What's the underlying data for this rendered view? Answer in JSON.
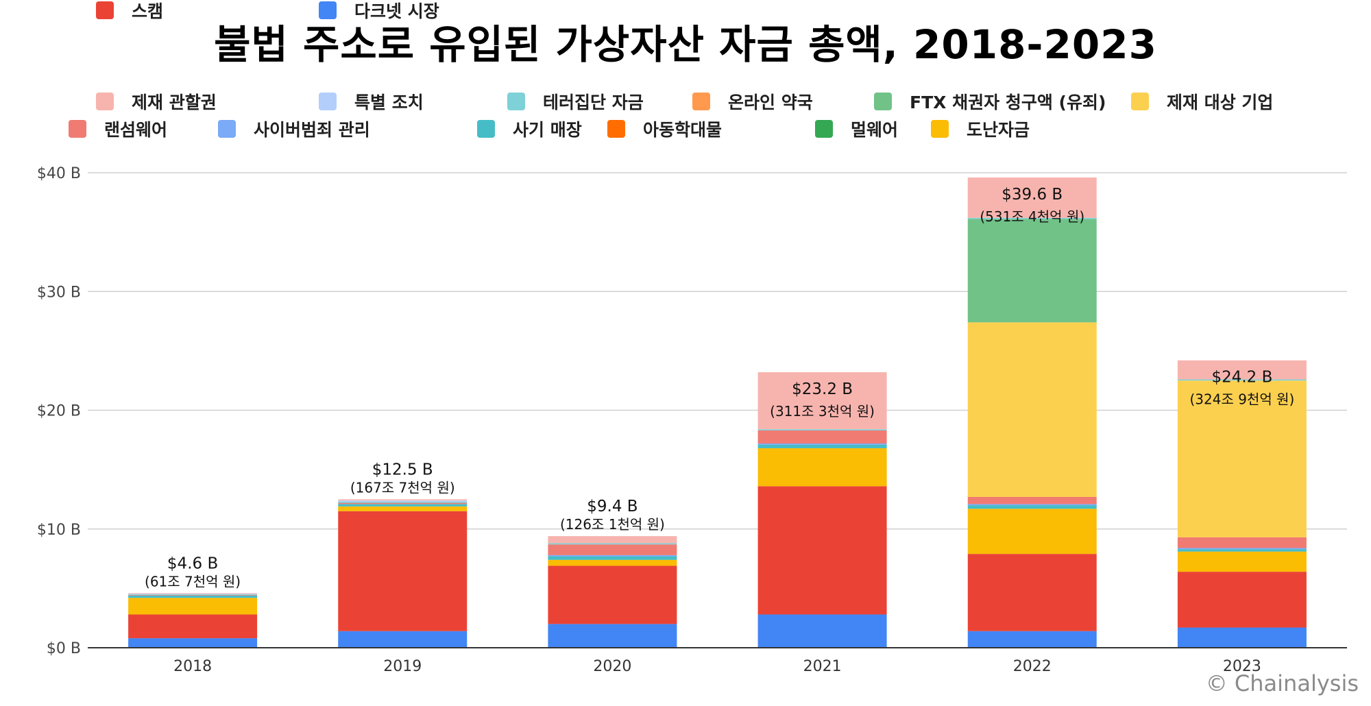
{
  "chart_data": {
    "type": "bar",
    "stacked": true,
    "title": "불법 주소로 유입된 가상자산 자금 총액, 2018-2023",
    "categories": [
      "2018",
      "2019",
      "2020",
      "2021",
      "2022",
      "2023"
    ],
    "ylim": [
      0,
      40
    ],
    "yticks": [
      "$0 B",
      "$10 B",
      "$20 B",
      "$30 B",
      "$40 B"
    ],
    "ytick_values": [
      0,
      10,
      20,
      30,
      40
    ],
    "grid": true,
    "legend_position": "top",
    "series": [
      {
        "name": "다크넷 시장",
        "color": "#4285F4",
        "values": [
          0.8,
          1.4,
          2.0,
          2.8,
          1.4,
          1.7
        ]
      },
      {
        "name": "스캠",
        "color": "#EA4335",
        "values": [
          2.0,
          10.1,
          4.9,
          10.8,
          6.5,
          4.7
        ]
      },
      {
        "name": "도난자금",
        "color": "#FBBC04",
        "values": [
          1.4,
          0.4,
          0.5,
          3.2,
          3.8,
          1.7
        ]
      },
      {
        "name": "멀웨어",
        "color": "#34A853",
        "values": [
          0,
          0,
          0,
          0,
          0,
          0
        ]
      },
      {
        "name": "아동학대물",
        "color": "#FF6D01",
        "values": [
          0,
          0,
          0,
          0,
          0,
          0
        ]
      },
      {
        "name": "사기 매장",
        "color": "#46BDC6",
        "values": [
          0.2,
          0.2,
          0.3,
          0.3,
          0.3,
          0.2
        ]
      },
      {
        "name": "사이버범죄 관리",
        "color": "#7BAAF7",
        "values": [
          0,
          0,
          0.1,
          0.1,
          0.1,
          0.1
        ]
      },
      {
        "name": "랜섬웨어",
        "color": "#F07B72",
        "values": [
          0.05,
          0.1,
          0.9,
          1.1,
          0.6,
          0.9
        ]
      },
      {
        "name": "제재 대상 기업",
        "color": "#FCD04F",
        "values": [
          0,
          0,
          0,
          0,
          14.7,
          13.2
        ]
      },
      {
        "name": "FTX 채권자 청구액 (유죄)",
        "color": "#71C287",
        "values": [
          0,
          0,
          0,
          0,
          8.7,
          0
        ]
      },
      {
        "name": "온라인 약국",
        "color": "#FF994D",
        "values": [
          0,
          0,
          0,
          0,
          0,
          0
        ]
      },
      {
        "name": "테러집단 자금",
        "color": "#7ED1D7",
        "values": [
          0.05,
          0.1,
          0.1,
          0.1,
          0.1,
          0.1
        ]
      },
      {
        "name": "특별 조치",
        "color": "#B3CEFB",
        "values": [
          0.05,
          0.1,
          0,
          0,
          0,
          0
        ]
      },
      {
        "name": "제재 관할권",
        "color": "#F7B4AE",
        "values": [
          0.05,
          0.1,
          0.6,
          4.8,
          3.4,
          1.6
        ]
      }
    ],
    "legend_order": [
      "제재 관할권",
      "특별 조치",
      "테러집단 자금",
      "온라인 약국",
      "FTX 채권자 청구액 (유죄)",
      "제재 대상 기업",
      "랜섬웨어",
      "사이버범죄 관리",
      "사기 매장",
      "아동학대물",
      "멀웨어",
      "도난자금",
      "스캠",
      "다크넷 시장"
    ],
    "totals": [
      {
        "value": 4.6,
        "label": "$4.6 B",
        "sublabel": "(61조 7천억 원)"
      },
      {
        "value": 12.5,
        "label": "$12.5 B",
        "sublabel": "(167조 7천억 원)"
      },
      {
        "value": 9.4,
        "label": "$9.4 B",
        "sublabel": "(126조 1천억 원)"
      },
      {
        "value": 23.2,
        "label": "$23.2 B",
        "sublabel": "(311조 3천억 원)"
      },
      {
        "value": 39.6,
        "label": "$39.6 B",
        "sublabel": "(531조 4천억 원)"
      },
      {
        "value": 24.2,
        "label": "$24.2 B",
        "sublabel": "(324조 9천억 원)"
      }
    ]
  },
  "watermark": "© Chainalysis"
}
